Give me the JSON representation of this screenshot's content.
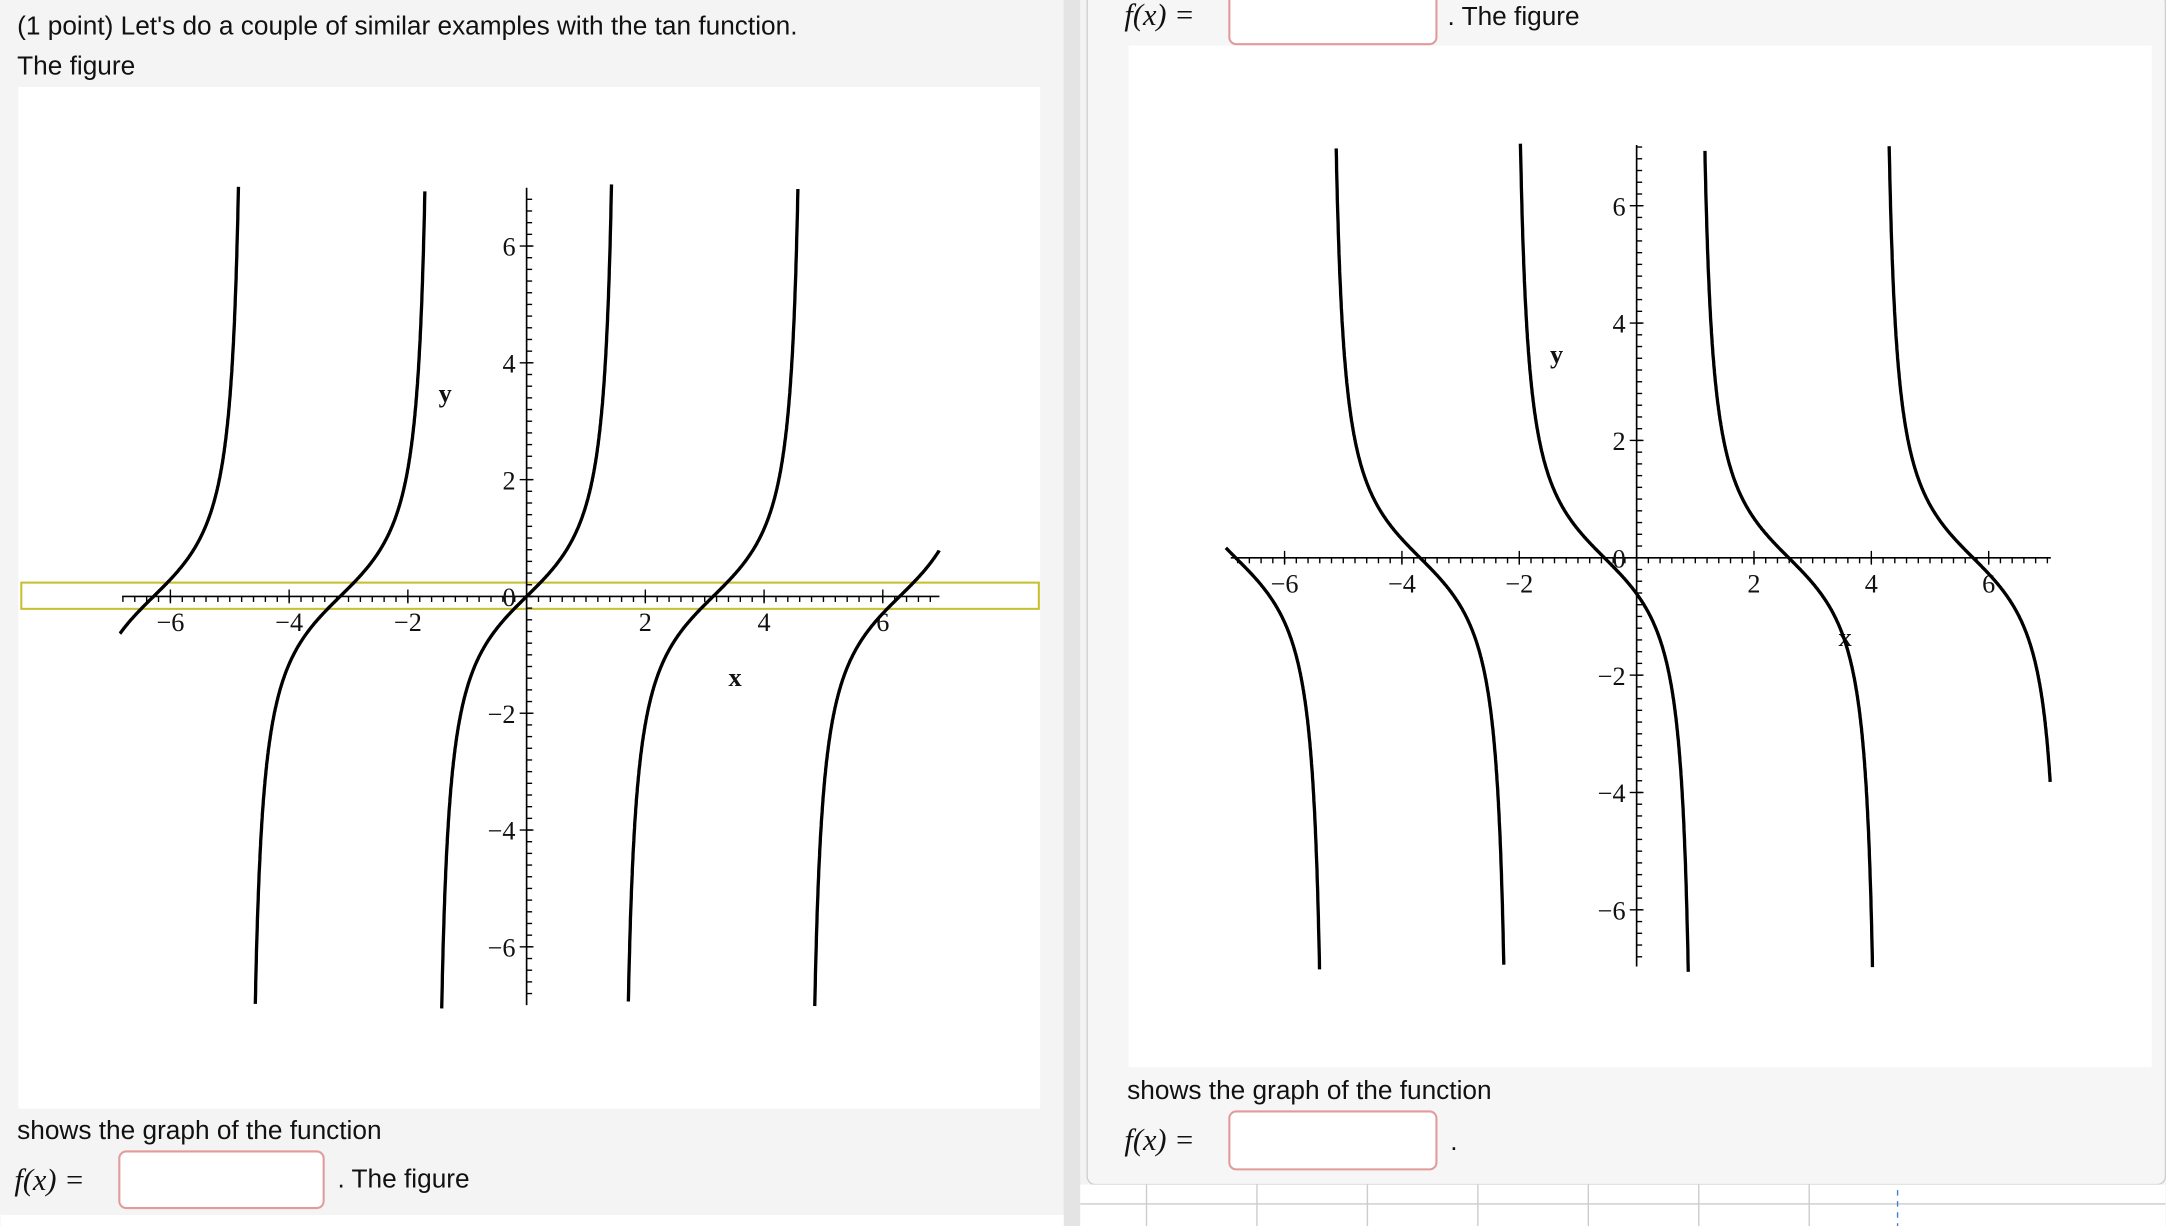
{
  "left_problem": {
    "intro": "(1 point) Let's do a couple of similar examples with the tan function.",
    "figure_lead": "The figure",
    "caption": "shows the graph of the function",
    "answer_label": "f(x) =",
    "next_lead": ". The figure"
  },
  "right_problem": {
    "top_answer_label": "f(x) =",
    "top_next_lead": ". The figure",
    "caption": "shows the graph of the function",
    "answer_label": "f(x) =",
    "end": "."
  },
  "figures": [
    {
      "x_label": "x",
      "y_label": "y",
      "xticks": [
        {
          "value": -6,
          "label": "−6"
        },
        {
          "value": -4,
          "label": "−4"
        },
        {
          "value": -2,
          "label": "−2"
        },
        2,
        4,
        6
      ],
      "yticks": [
        6,
        4,
        2,
        0,
        {
          "value": -2,
          "label": "−2"
        },
        {
          "value": -4,
          "label": "−4"
        },
        {
          "value": -6,
          "label": "−6"
        }
      ]
    },
    {
      "x_label": "x",
      "y_label": "y",
      "xticks": [
        {
          "value": -6,
          "label": "−6"
        },
        {
          "value": -4,
          "label": "−4"
        },
        {
          "value": -2,
          "label": "−2"
        },
        2,
        4,
        6
      ],
      "yticks": [
        6,
        4,
        2,
        0,
        {
          "value": -2,
          "label": "−2"
        },
        {
          "value": -4,
          "label": "−4"
        },
        {
          "value": -6,
          "label": "−6"
        }
      ]
    }
  ]
}
